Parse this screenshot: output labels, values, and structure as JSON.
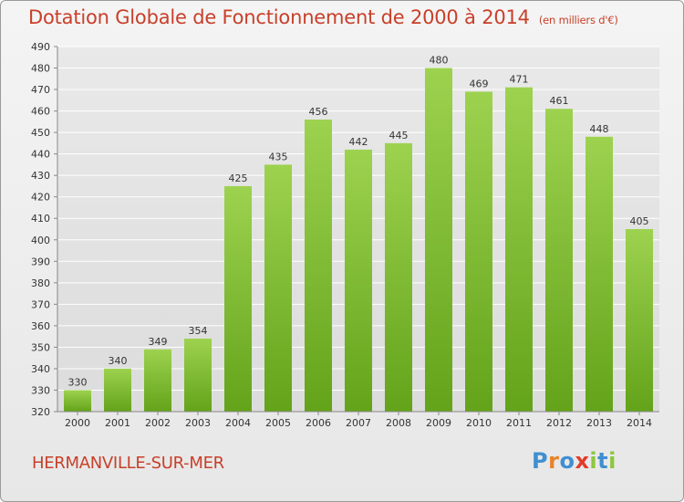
{
  "header": {
    "title": "Dotation Globale de Fonctionnement de 2000 à 2014",
    "subtitle": "(en milliers d'€)"
  },
  "footer": {
    "commune": "HERMANVILLE-SUR-MER",
    "logo": "Proxiti"
  },
  "colors": {
    "bar_top": "#9dd24f",
    "bar_bottom": "#63a31a",
    "title": "#c8402a",
    "grid": "#ffffff"
  },
  "chart_data": {
    "type": "bar",
    "title": "Dotation Globale de Fonctionnement de 2000 à 2014",
    "subtitle": "(en milliers d'€)",
    "categories": [
      "2000",
      "2001",
      "2002",
      "2003",
      "2004",
      "2005",
      "2006",
      "2007",
      "2008",
      "2009",
      "2010",
      "2011",
      "2012",
      "2013",
      "2014"
    ],
    "values": [
      330,
      340,
      349,
      354,
      425,
      435,
      456,
      442,
      445,
      480,
      469,
      471,
      461,
      448,
      405
    ],
    "ylim": [
      320,
      490
    ],
    "ytick_step": 10,
    "grid": true,
    "data_labels": true
  }
}
